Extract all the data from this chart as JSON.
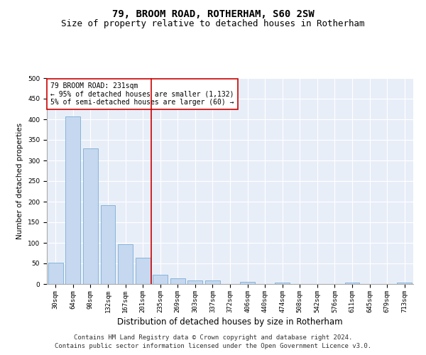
{
  "title": "79, BROOM ROAD, ROTHERHAM, S60 2SW",
  "subtitle": "Size of property relative to detached houses in Rotherham",
  "xlabel": "Distribution of detached houses by size in Rotherham",
  "ylabel": "Number of detached properties",
  "categories": [
    "30sqm",
    "64sqm",
    "98sqm",
    "132sqm",
    "167sqm",
    "201sqm",
    "235sqm",
    "269sqm",
    "303sqm",
    "337sqm",
    "372sqm",
    "406sqm",
    "440sqm",
    "474sqm",
    "508sqm",
    "542sqm",
    "576sqm",
    "611sqm",
    "645sqm",
    "679sqm",
    "713sqm"
  ],
  "values": [
    52,
    407,
    330,
    192,
    97,
    64,
    23,
    13,
    8,
    9,
    0,
    5,
    0,
    3,
    0,
    0,
    0,
    3,
    0,
    0,
    3
  ],
  "bar_color": "#c5d8f0",
  "bar_edge_color": "#7aadd4",
  "vline_x_index": 6,
  "vline_color": "#cc0000",
  "annotation_text": "79 BROOM ROAD: 231sqm\n← 95% of detached houses are smaller (1,132)\n5% of semi-detached houses are larger (60) →",
  "annotation_box_color": "#ffffff",
  "annotation_box_edge": "#cc0000",
  "ylim": [
    0,
    500
  ],
  "yticks": [
    0,
    50,
    100,
    150,
    200,
    250,
    300,
    350,
    400,
    450,
    500
  ],
  "background_color": "#e8eef8",
  "grid_color": "#ffffff",
  "footer_line1": "Contains HM Land Registry data © Crown copyright and database right 2024.",
  "footer_line2": "Contains public sector information licensed under the Open Government Licence v3.0.",
  "title_fontsize": 10,
  "subtitle_fontsize": 9,
  "xlabel_fontsize": 8.5,
  "ylabel_fontsize": 7.5,
  "tick_fontsize": 6.5,
  "annotation_fontsize": 7,
  "footer_fontsize": 6.5
}
